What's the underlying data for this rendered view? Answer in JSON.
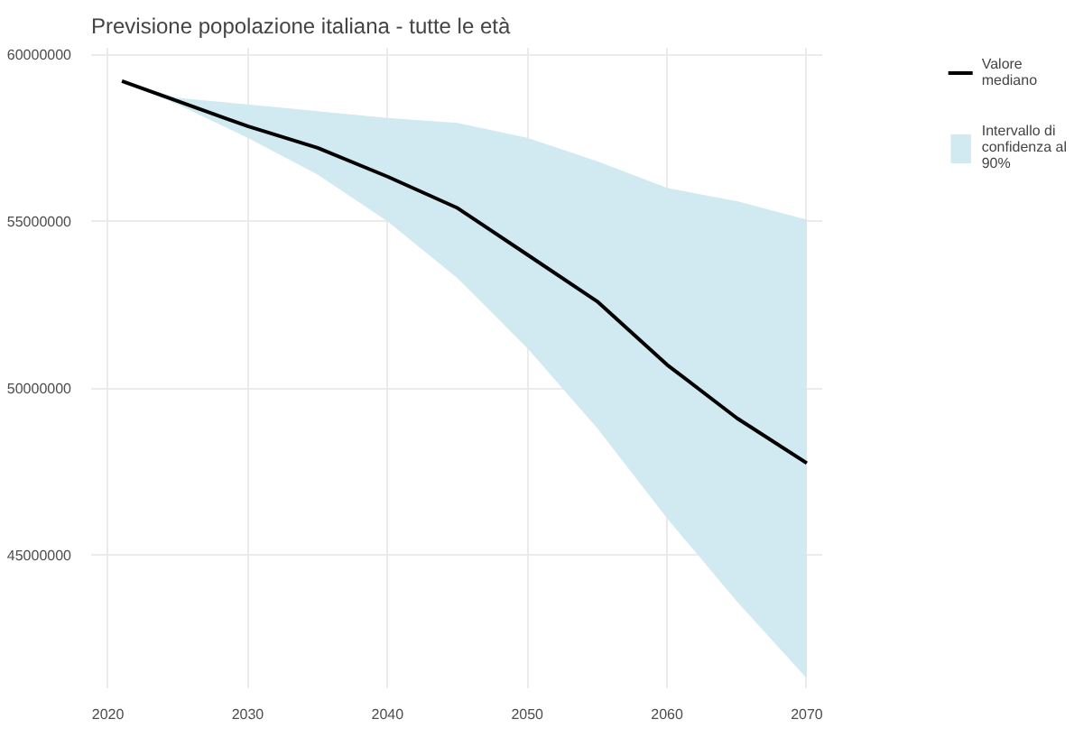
{
  "chart_data": {
    "type": "line",
    "title": "Previsione popolazione italiana - tutte le età",
    "x": [
      2021,
      2025,
      2030,
      2035,
      2040,
      2045,
      2050,
      2055,
      2060,
      2065,
      2070
    ],
    "series": [
      {
        "name": "Valore mediano",
        "color": "#000000",
        "values": [
          59200000,
          58600000,
          57850000,
          57200000,
          56340000,
          55400000,
          54000000,
          52600000,
          50700000,
          49100000,
          47750000
        ]
      },
      {
        "type": "area",
        "name": "Intervallo di confidenza al 90%",
        "color": "#d1e9f1",
        "values": [
          null,
          null,
          null,
          null,
          null,
          null,
          null,
          null,
          null,
          null,
          null
        ],
        "lower": [
          59200000,
          58500000,
          57500000,
          56400000,
          55000000,
          53300000,
          51200000,
          48800000,
          46100000,
          43600000,
          41300000
        ],
        "upper": [
          59200000,
          58700000,
          58500000,
          58300000,
          58100000,
          57950000,
          57500000,
          56800000,
          56000000,
          55600000,
          55050000
        ]
      }
    ],
    "xlim": [
      2018.8,
      2071.1
    ],
    "ylim": [
      41000000,
      60200000
    ],
    "xticks": [
      2020,
      2030,
      2040,
      2050,
      2060,
      2070
    ],
    "yticks": [
      45000000,
      50000000,
      55000000,
      60000000
    ],
    "grid": true,
    "legend": "right",
    "line_style": "solid",
    "marker": "none"
  }
}
